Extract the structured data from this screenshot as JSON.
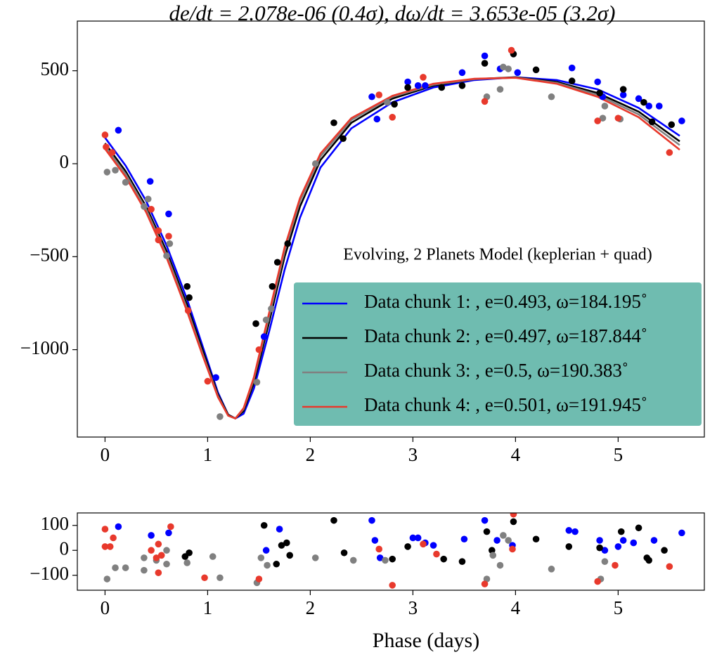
{
  "chart_data": [
    {
      "type": "scatter",
      "title": "de/dt = 2.078e-06  (0.4σ),  dω/dt = 3.653e-05 (3.2σ)",
      "legend_title": "Evolving, 2 Planets Model (keplerian + quad)",
      "legend_loc": "lower right",
      "legend_color": "#6fbcb0",
      "xlim": [
        -0.27,
        5.84
      ],
      "xticks": [
        0,
        1,
        2,
        3,
        4,
        5
      ],
      "ylim": [
        -1470,
        767
      ],
      "yticks": [
        {
          "value": -1000,
          "label": "−1000"
        },
        {
          "value": -500,
          "label": "−500"
        },
        0,
        500
      ],
      "series": [
        {
          "name": "Data chunk 1: , e=0.493, ω=184.195˚",
          "color": "#0000ff",
          "x": [
            0.13,
            0.44,
            0.62,
            1.08,
            1.55,
            2.6,
            2.65,
            2.95,
            3.05,
            3.12,
            3.48,
            3.7,
            3.85,
            4.02,
            4.55,
            4.8,
            4.85,
            5.05,
            5.2,
            5.3,
            5.4,
            5.62
          ],
          "values": [
            180,
            -95,
            -270,
            -1150,
            -930,
            360,
            240,
            440,
            420,
            420,
            490,
            580,
            510,
            490,
            515,
            440,
            360,
            370,
            350,
            310,
            310,
            230
          ],
          "model": {
            "x": [
              0,
              0.2,
              0.4,
              0.6,
              0.8,
              0.95,
              1.1,
              1.2,
              1.27,
              1.35,
              1.45,
              1.6,
              1.75,
              1.9,
              2.1,
              2.4,
              2.8,
              3.2,
              3.6,
              4.0,
              4.4,
              4.8,
              5.2,
              5.6
            ],
            "values": [
              140,
              -10,
              -200,
              -440,
              -730,
              -980,
              -1230,
              -1350,
              -1370,
              -1345,
              -1210,
              -900,
              -570,
              -290,
              -20,
              190,
              330,
              410,
              450,
              465,
              450,
              400,
              300,
              150
            ]
          }
        },
        {
          "name": "Data chunk 2: , e=0.497, ω=187.844˚",
          "color": "#000000",
          "x": [
            0.8,
            0.82,
            1.47,
            1.63,
            1.68,
            1.78,
            2.23,
            2.32,
            2.82,
            2.95,
            3.28,
            3.48,
            3.7,
            3.98,
            4.2,
            4.55,
            4.82,
            5.05,
            5.25,
            5.33,
            5.52
          ],
          "values": [
            -660,
            -720,
            -860,
            -660,
            -530,
            -430,
            220,
            135,
            320,
            410,
            410,
            420,
            540,
            590,
            505,
            445,
            380,
            400,
            330,
            225,
            210
          ],
          "model": {
            "x": [
              0,
              0.2,
              0.4,
              0.6,
              0.8,
              0.95,
              1.1,
              1.2,
              1.27,
              1.35,
              1.45,
              1.6,
              1.75,
              1.9,
              2.1,
              2.4,
              2.8,
              3.2,
              3.6,
              4.0,
              4.4,
              4.8,
              5.2,
              5.6
            ],
            "values": [
              110,
              -40,
              -230,
              -470,
              -760,
              -1000,
              -1240,
              -1350,
              -1370,
              -1330,
              -1180,
              -850,
              -500,
              -230,
              20,
              220,
              350,
              420,
              455,
              465,
              440,
              380,
              280,
              120
            ]
          }
        },
        {
          "name": "Data chunk 3: , e=0.5, ω=190.383˚",
          "color": "#808080",
          "x": [
            0.02,
            0.1,
            0.2,
            0.38,
            0.42,
            0.6,
            0.63,
            1.12,
            1.48,
            1.57,
            1.62,
            2.05,
            2.75,
            3.72,
            3.85,
            3.88,
            3.93,
            4.35,
            4.85,
            4.87,
            5.02
          ],
          "values": [
            -45,
            -35,
            -100,
            -230,
            -190,
            -495,
            -430,
            -1360,
            -1175,
            -840,
            -780,
            0,
            330,
            360,
            400,
            520,
            510,
            360,
            245,
            310,
            240
          ],
          "model": {
            "x": [
              0,
              0.2,
              0.4,
              0.6,
              0.8,
              0.95,
              1.1,
              1.2,
              1.27,
              1.35,
              1.45,
              1.6,
              1.75,
              1.9,
              2.1,
              2.4,
              2.8,
              3.2,
              3.6,
              4.0,
              4.4,
              4.8,
              5.2,
              5.6
            ],
            "values": [
              95,
              -55,
              -245,
              -490,
              -780,
              -1020,
              -1250,
              -1355,
              -1370,
              -1320,
              -1160,
              -820,
              -470,
              -200,
              40,
              235,
              360,
              425,
              455,
              463,
              435,
              370,
              265,
              100
            ]
          }
        },
        {
          "name": "Data chunk 4: , e=0.501, ω=191.945˚",
          "color": "#e8392c",
          "x": [
            0.0,
            0.01,
            0.07,
            0.45,
            0.52,
            0.52,
            0.62,
            0.81,
            1.0,
            1.5,
            2.67,
            2.8,
            3.1,
            3.7,
            3.96,
            4.8,
            5.0,
            5.5
          ],
          "values": [
            155,
            90,
            60,
            -245,
            -360,
            -410,
            -390,
            -790,
            -1170,
            -1000,
            370,
            250,
            465,
            335,
            610,
            230,
            245,
            60
          ],
          "model": {
            "x": [
              0,
              0.2,
              0.4,
              0.6,
              0.8,
              0.95,
              1.1,
              1.2,
              1.27,
              1.35,
              1.45,
              1.6,
              1.75,
              1.9,
              2.1,
              2.4,
              2.8,
              3.2,
              3.6,
              4.0,
              4.4,
              4.8,
              5.2,
              5.6
            ],
            "values": [
              80,
              -70,
              -260,
              -505,
              -795,
              -1030,
              -1255,
              -1355,
              -1370,
              -1315,
              -1150,
              -800,
              -450,
              -185,
              55,
              245,
              365,
              430,
              457,
              462,
              430,
              360,
              250,
              75
            ]
          }
        }
      ]
    },
    {
      "type": "scatter",
      "x_label": "Phase (days)",
      "xlim": [
        -0.27,
        5.84
      ],
      "xticks": [
        0,
        1,
        2,
        3,
        4,
        5
      ],
      "ylim": [
        -160,
        150
      ],
      "yticks": [
        {
          "value": -100,
          "label": "−100"
        },
        0,
        100
      ],
      "series": [
        {
          "color": "#0000ff",
          "x": [
            0.13,
            0.45,
            0.62,
            1.57,
            1.7,
            2.6,
            2.63,
            2.68,
            3.0,
            3.05,
            3.12,
            3.2,
            3.5,
            3.7,
            3.82,
            3.97,
            4.52,
            4.58,
            4.82,
            4.87,
            5.0,
            5.05,
            5.15,
            5.35,
            5.62
          ],
          "values": [
            95,
            60,
            70,
            0,
            85,
            120,
            40,
            -30,
            50,
            50,
            30,
            20,
            45,
            120,
            40,
            20,
            80,
            75,
            40,
            0,
            15,
            40,
            30,
            40,
            70
          ]
        },
        {
          "color": "#000000",
          "x": [
            0.78,
            0.82,
            1.55,
            1.67,
            1.72,
            1.77,
            1.8,
            2.23,
            2.33,
            2.8,
            2.95,
            3.3,
            3.48,
            3.72,
            3.77,
            3.98,
            4.2,
            4.52,
            4.82,
            5.03,
            5.2,
            5.28,
            5.3,
            5.45
          ],
          "values": [
            -25,
            -10,
            100,
            -55,
            20,
            30,
            -20,
            120,
            -10,
            -35,
            15,
            -35,
            -45,
            75,
            0,
            115,
            45,
            15,
            10,
            75,
            90,
            -30,
            -40,
            0
          ]
        },
        {
          "color": "#808080",
          "x": [
            0.02,
            0.1,
            0.2,
            0.38,
            0.38,
            0.5,
            0.6,
            0.6,
            0.8,
            1.05,
            1.12,
            1.48,
            1.52,
            1.58,
            2.05,
            2.42,
            2.73,
            3.72,
            3.78,
            3.85,
            3.88,
            3.93,
            4.35,
            4.83,
            4.87
          ],
          "values": [
            -115,
            -70,
            -70,
            -30,
            -80,
            -40,
            0,
            -55,
            -50,
            -25,
            -110,
            -130,
            -30,
            -60,
            -30,
            -40,
            -40,
            -115,
            -20,
            -60,
            60,
            40,
            -75,
            -115,
            -45
          ]
        },
        {
          "color": "#e8392c",
          "x": [
            0,
            0,
            0.05,
            0.08,
            0.45,
            0.5,
            0.52,
            0.52,
            0.55,
            0.64,
            0.97,
            1.5,
            2.67,
            2.8,
            3.1,
            3.23,
            3.7,
            3.97,
            3.98,
            4.8,
            4.97,
            5.5
          ],
          "values": [
            85,
            15,
            15,
            50,
            0,
            -30,
            25,
            -90,
            -20,
            95,
            -110,
            -115,
            5,
            -140,
            25,
            -15,
            -135,
            5,
            145,
            -125,
            -60,
            -65
          ]
        }
      ]
    }
  ]
}
